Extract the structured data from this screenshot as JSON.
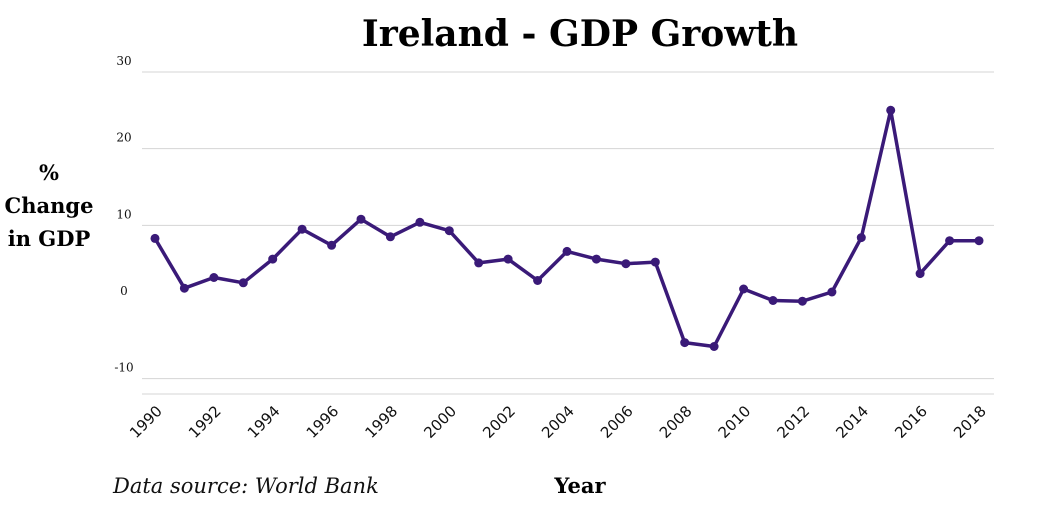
{
  "chart_data": {
    "type": "line",
    "title": "Ireland - GDP Growth",
    "xlabel": "Year",
    "ylabel_lines": [
      "%",
      "Change",
      "in GDP"
    ],
    "source": "Data source: World Bank",
    "x": [
      1990,
      1991,
      1992,
      1993,
      1994,
      1995,
      1996,
      1997,
      1998,
      1999,
      2000,
      2001,
      2002,
      2003,
      2004,
      2005,
      2006,
      2007,
      2008,
      2009,
      2010,
      2011,
      2012,
      2013,
      2014,
      2015,
      2016,
      2017,
      2018
    ],
    "values": [
      8.3,
      1.8,
      3.2,
      2.5,
      5.6,
      9.5,
      7.4,
      10.8,
      8.5,
      10.4,
      9.3,
      5.1,
      5.6,
      2.8,
      6.6,
      5.6,
      5.0,
      5.2,
      -5.3,
      -5.8,
      1.7,
      0.2,
      0.1,
      1.3,
      8.4,
      25.0,
      3.7,
      8.0,
      8.0
    ],
    "x_ticks": [
      "1990",
      "1992",
      "1994",
      "1996",
      "1998",
      "2000",
      "2002",
      "2004",
      "2006",
      "2008",
      "2010",
      "2012",
      "2014",
      "2016",
      "2018"
    ],
    "y_ticks": [
      "30",
      "20",
      "10",
      "0",
      "-10"
    ],
    "ylim": [
      -12,
      30
    ],
    "xlim": [
      1990,
      2018
    ],
    "grid": true,
    "legend": "none",
    "line_color": "#3a1a78",
    "marker_color": "#3a1a78"
  }
}
